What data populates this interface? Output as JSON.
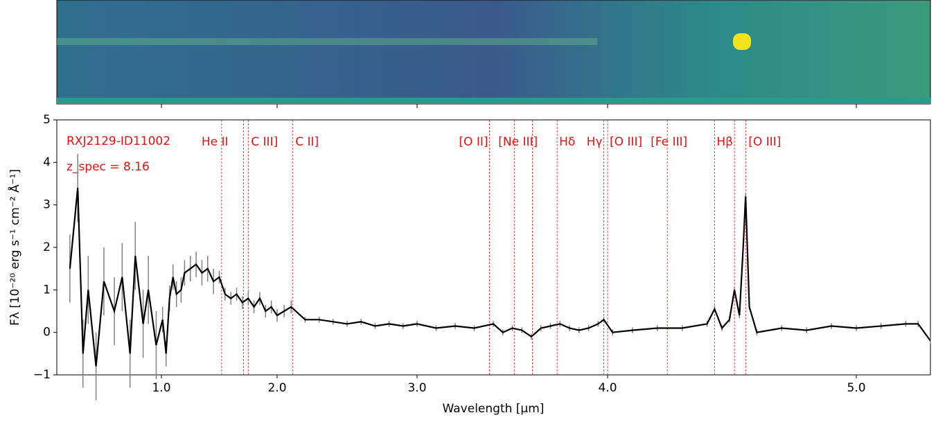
{
  "chart_data": {
    "type": "line",
    "xlabel": "Wavelength [μm]",
    "ylabel": "Fλ [10⁻²⁰ erg s⁻¹ cm⁻² Å⁻¹]",
    "annotations": [
      "RXJ2129-ID11002",
      "z_spec = 8.16"
    ],
    "xlim": [
      0.6,
      5.3
    ],
    "xticks": [
      {
        "value": 1,
        "label": "1.0"
      },
      {
        "value": 2,
        "label": "2.0"
      },
      {
        "value": 3,
        "label": "3.0"
      },
      {
        "value": 4,
        "label": "4.0"
      },
      {
        "value": 5,
        "label": "5.0"
      }
    ],
    "ylim": [
      -1,
      5
    ],
    "yticks": [
      {
        "value": -1,
        "label": "−1"
      },
      0,
      1,
      2,
      3,
      4,
      5
    ],
    "lines": [
      {
        "x": 1.52,
        "label": "He II"
      },
      {
        "x": 1.71,
        "label": null
      },
      {
        "x": 1.75,
        "label": "C III]"
      },
      {
        "x": 2.11,
        "label": "C II]"
      },
      {
        "x": 3.38,
        "label": "[O II]"
      },
      {
        "x": 3.51,
        "label": "[Ne III]"
      },
      {
        "x": 3.605,
        "label": null
      },
      {
        "x": 3.735,
        "label": "Hδ"
      },
      {
        "x": 3.98,
        "label": "Hγ"
      },
      {
        "x": 4.0,
        "label": "[O III]"
      },
      {
        "x": 4.24,
        "label": "[Fe III]"
      },
      {
        "x": 4.43,
        "label": "Hβ"
      },
      {
        "x": 4.51,
        "label": null
      },
      {
        "x": 4.555,
        "label": "[O III]"
      }
    ],
    "line_color": "#e8110f",
    "series": [
      {
        "name": "flux",
        "color": "#000000",
        "error_color": "#808080",
        "x": [
          0.65,
          0.68,
          0.7,
          0.72,
          0.75,
          0.78,
          0.82,
          0.85,
          0.88,
          0.9,
          0.93,
          0.95,
          0.98,
          1.01,
          1.04,
          1.07,
          1.1,
          1.13,
          1.17,
          1.2,
          1.25,
          1.3,
          1.35,
          1.4,
          1.45,
          1.5,
          1.55,
          1.6,
          1.65,
          1.7,
          1.75,
          1.8,
          1.85,
          1.9,
          1.95,
          2.0,
          2.05,
          2.1,
          2.2,
          2.3,
          2.4,
          2.5,
          2.6,
          2.7,
          2.8,
          2.9,
          3.0,
          3.1,
          3.2,
          3.3,
          3.4,
          3.45,
          3.5,
          3.55,
          3.6,
          3.65,
          3.7,
          3.75,
          3.8,
          3.85,
          3.9,
          3.95,
          3.98,
          4.02,
          4.1,
          4.2,
          4.3,
          4.4,
          4.43,
          4.46,
          4.49,
          4.51,
          4.53,
          4.545,
          4.555,
          4.57,
          4.6,
          4.7,
          4.8,
          4.9,
          5.0,
          5.1,
          5.2,
          5.25,
          5.3
        ],
        "values": [
          1.5,
          3.4,
          -0.5,
          1.0,
          -0.8,
          1.2,
          0.5,
          1.3,
          -0.5,
          1.8,
          0.2,
          1.0,
          -0.3,
          0.3,
          -0.5,
          0.8,
          1.3,
          0.9,
          1.0,
          1.4,
          1.5,
          1.6,
          1.4,
          1.5,
          1.2,
          1.3,
          0.9,
          0.8,
          0.9,
          0.7,
          0.8,
          0.6,
          0.8,
          0.5,
          0.6,
          0.4,
          0.5,
          0.6,
          0.3,
          0.3,
          0.25,
          0.2,
          0.25,
          0.15,
          0.2,
          0.15,
          0.2,
          0.1,
          0.15,
          0.1,
          0.2,
          0.0,
          0.1,
          0.05,
          -0.1,
          0.1,
          0.15,
          0.2,
          0.1,
          0.05,
          0.1,
          0.2,
          0.3,
          0.0,
          0.05,
          0.1,
          0.1,
          0.2,
          0.55,
          0.1,
          0.3,
          1.0,
          0.4,
          2.0,
          3.2,
          0.6,
          0.0,
          0.1,
          0.05,
          0.15,
          0.1,
          0.15,
          0.2,
          0.2,
          -0.2
        ],
        "errors": [
          0.8,
          0.8,
          0.8,
          0.8,
          0.8,
          0.8,
          0.8,
          0.8,
          0.8,
          0.8,
          0.8,
          0.8,
          0.8,
          0.3,
          0.3,
          0.3,
          0.3,
          0.3,
          0.3,
          0.3,
          0.3,
          0.3,
          0.3,
          0.3,
          0.3,
          0.15,
          0.15,
          0.15,
          0.15,
          0.15,
          0.15,
          0.15,
          0.15,
          0.15,
          0.15,
          0.15,
          0.15,
          0.15,
          0.07,
          0.07,
          0.07,
          0.07,
          0.07,
          0.07,
          0.07,
          0.07,
          0.07,
          0.07,
          0.07,
          0.07,
          0.07,
          0.07,
          0.07,
          0.07,
          0.07,
          0.07,
          0.07,
          0.07,
          0.07,
          0.07,
          0.07,
          0.07,
          0.07,
          0.07,
          0.07,
          0.07,
          0.07,
          0.07,
          0.07,
          0.07,
          0.07,
          0.07,
          0.07,
          0.07,
          0.07,
          0.07,
          0.07,
          0.07,
          0.07,
          0.07,
          0.07,
          0.07,
          0.07,
          0.07,
          0.07
        ]
      }
    ]
  }
}
